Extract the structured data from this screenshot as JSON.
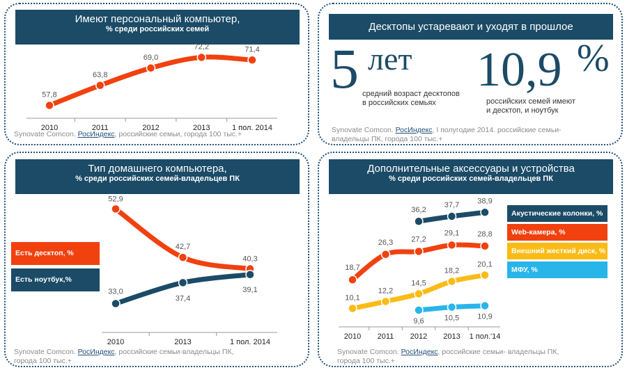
{
  "panel1": {
    "title": "Имеют персональный компьютер,",
    "subtitle": "% среди российских семей",
    "source_prefix": "Synovate Comcon. ",
    "source_link": "РосИндекс",
    "source_suffix": ", российские семьи, города 100 тыс.+"
  },
  "panel2": {
    "title": "Десктопы устаревают и уходят в прошлое",
    "stat1_value": "5",
    "stat1_unit": "лет",
    "stat1_caption_1": "средний возраст десктопов",
    "stat1_caption_2": "в российских семьях",
    "stat2_value": "10,9",
    "stat2_unit": "%",
    "stat2_caption_1": "российских семей имеют",
    "stat2_caption_2": "и десктоп, и ноутбук",
    "source_prefix": "Synovate Comcon. ",
    "source_link": "РосИндекс",
    "source_suffix": ", I полугодие 2014. российские семьи-",
    "source_line2": "владельцы ПК, города 100 тыс.+"
  },
  "panel3": {
    "title": "Тип домашнего компьютера,",
    "subtitle": "% среди российских семей-владельцев ПК",
    "source_prefix": "Synovate Comcon. ",
    "source_link": "РосИндекс",
    "source_suffix": ", российские семьи-владельцы ПК,",
    "source_line2": "города 100 тыс.+"
  },
  "panel4": {
    "title": "Дополнительные аксессуары и устройства",
    "subtitle": "% среди российских семей-владельцев ПК",
    "source_prefix": "Synovate Comcon. ",
    "source_link": "РосИндекс",
    "source_suffix": ", российские семьи- владельцы ПК,",
    "source_line2": "города 100 тыс.+"
  },
  "colors": {
    "header": "#1b4b66",
    "orange": "#f1410f",
    "navy": "#1b4b66",
    "yellow": "#fbbb16",
    "cyan": "#29b5ea",
    "label": "#555555"
  },
  "chart_data": [
    {
      "type": "line",
      "categories": [
        "2010",
        "2011",
        "2012",
        "2013",
        "1 пол. 2014"
      ],
      "series": [
        {
          "values": [
            57.8,
            63.8,
            69.0,
            72.2,
            71.4
          ],
          "labels": [
            "57,8",
            "63,8",
            "69,0",
            "72,2",
            "71,4"
          ],
          "color": "#f1410f"
        }
      ]
    },
    {
      "type": "line",
      "categories": [
        "2010",
        "2013",
        "1 пол. 2014"
      ],
      "series": [
        {
          "name": "Есть десктоп, %",
          "values": [
            52.9,
            42.7,
            40.3
          ],
          "labels": [
            "52,9",
            "42,7",
            "40,3"
          ],
          "color": "#f1410f"
        },
        {
          "name": "Есть ноутбук,%",
          "values": [
            33.0,
            37.4,
            39.1
          ],
          "labels": [
            "33,0",
            "37,4",
            "39,1"
          ],
          "color": "#1b4b66"
        }
      ]
    },
    {
      "type": "line",
      "categories": [
        "2010",
        "2011",
        "2012",
        "2013",
        "1 пол.'14"
      ],
      "series": [
        {
          "name": "Акустические колонки, %",
          "values": [
            null,
            null,
            36.2,
            37.7,
            38.9
          ],
          "labels": [
            "",
            "",
            "36,2",
            "37,7",
            "38,9"
          ],
          "color": "#1b4b66"
        },
        {
          "name": "Web-камера, %",
          "values": [
            18.7,
            26.3,
            27.2,
            29.1,
            28.8
          ],
          "labels": [
            "18,7",
            "26,3",
            "27,2",
            "29,1",
            "28,8"
          ],
          "color": "#f1410f"
        },
        {
          "name": "Внешний жесткий диск, %",
          "values": [
            10.1,
            12.2,
            14.5,
            18.2,
            20.1
          ],
          "labels": [
            "10,1",
            "12,2",
            "14,5",
            "18,2",
            "20,1"
          ],
          "color": "#fbbb16"
        },
        {
          "name": "МФУ, %",
          "values": [
            null,
            null,
            9.6,
            10.5,
            10.9
          ],
          "labels": [
            "",
            "",
            "9,6",
            "10,5",
            "10,9"
          ],
          "color": "#29b5ea"
        }
      ]
    }
  ]
}
